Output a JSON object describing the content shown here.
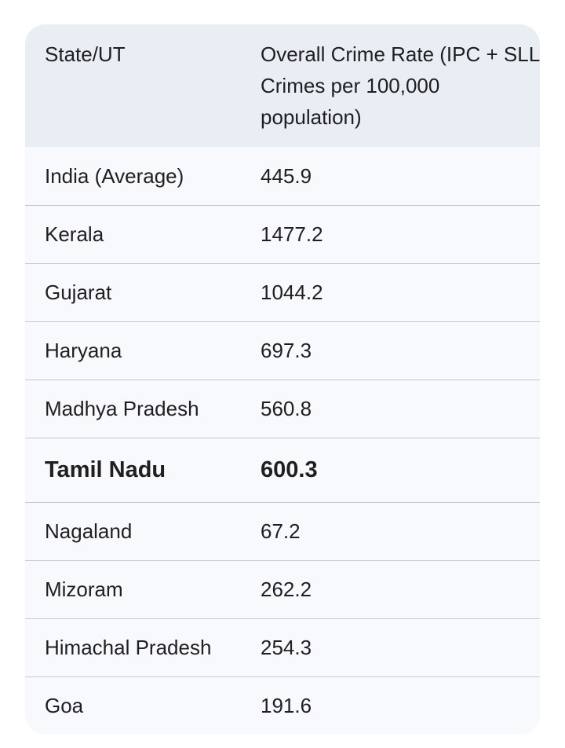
{
  "table": {
    "headers": [
      "State/UT",
      "Overall Crime Rate (IPC + SLL Crimes per 100,000 population)"
    ],
    "rows": [
      {
        "state": "India (Average)",
        "rate": "445.9",
        "bold": false
      },
      {
        "state": "Kerala",
        "rate": "1477.2",
        "bold": false
      },
      {
        "state": "Gujarat",
        "rate": "1044.2",
        "bold": false
      },
      {
        "state": "Haryana",
        "rate": "697.3",
        "bold": false
      },
      {
        "state": "Madhya Pradesh",
        "rate": "560.8",
        "bold": false
      },
      {
        "state": "Tamil Nadu",
        "rate": "600.3",
        "bold": true
      },
      {
        "state": "Nagaland",
        "rate": "67.2",
        "bold": false
      },
      {
        "state": "Mizoram",
        "rate": "262.2",
        "bold": false
      },
      {
        "state": "Himachal Pradesh",
        "rate": "254.3",
        "bold": false
      },
      {
        "state": "Goa",
        "rate": "191.6",
        "bold": false
      }
    ]
  },
  "colors": {
    "header_background": "#e9edf4",
    "body_background": "#f8f9fc",
    "row_divider": "#c8c8c8",
    "text": "#1f1f1f"
  }
}
